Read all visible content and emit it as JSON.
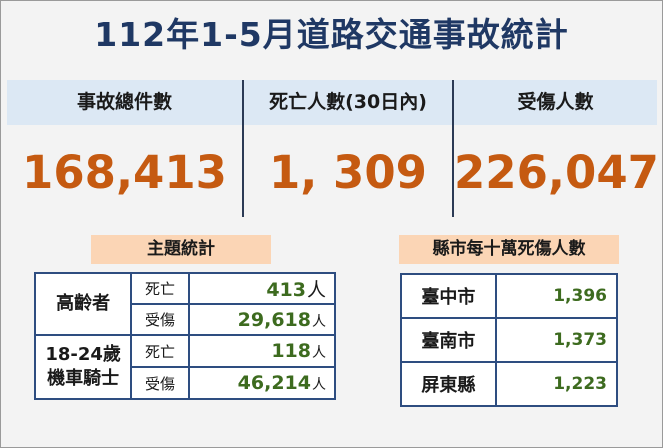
{
  "title": "112年1-5月道路交通事故統計",
  "stats": [
    {
      "label": "事故總件數",
      "value": "168,413"
    },
    {
      "label": "死亡人數(30日內)",
      "value": "1, 309"
    },
    {
      "label": "受傷人數",
      "value": "226,047"
    }
  ],
  "topic": {
    "title": "主題統計",
    "groups": [
      {
        "name_lines": [
          "高齡者"
        ],
        "rows": [
          {
            "kind": "死亡",
            "value": "413",
            "unit": "人"
          },
          {
            "kind": "受傷",
            "value": "29,618",
            "unit": "人"
          }
        ]
      },
      {
        "name_lines": [
          "18-24歲",
          "機車騎士"
        ],
        "rows": [
          {
            "kind": "死亡",
            "value": "118",
            "unit": "人"
          },
          {
            "kind": "受傷",
            "value": "46,214",
            "unit": "人"
          }
        ]
      }
    ]
  },
  "city": {
    "title": "縣市每十萬死傷人數",
    "rows": [
      {
        "name": "臺中市",
        "value": "1,396"
      },
      {
        "name": "臺南市",
        "value": "1,373"
      },
      {
        "name": "屏東縣",
        "value": "1,223"
      }
    ]
  },
  "colors": {
    "title": "#1f3864",
    "value": "#c55a11",
    "table_number": "#3d6b1f"
  }
}
